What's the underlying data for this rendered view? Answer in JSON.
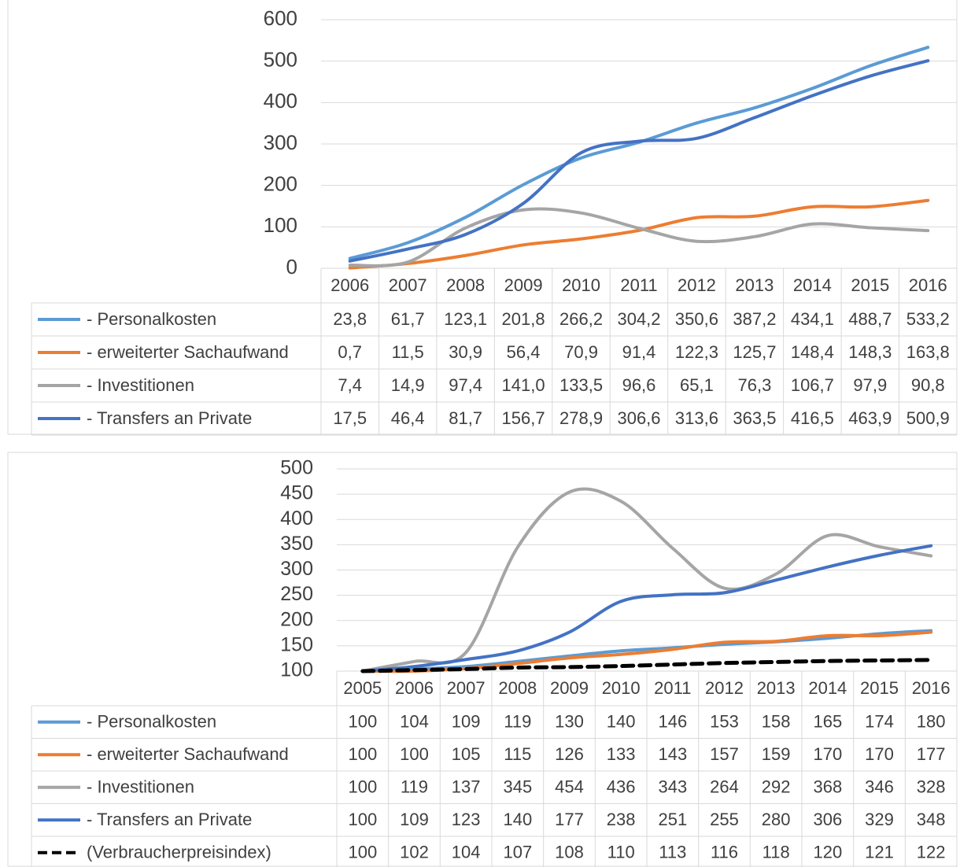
{
  "chart_data": [
    {
      "type": "line",
      "categories": [
        "2006",
        "2007",
        "2008",
        "2009",
        "2010",
        "2011",
        "2012",
        "2013",
        "2014",
        "2015",
        "2016"
      ],
      "ylim": [
        0,
        600
      ],
      "yticks": [
        0,
        100,
        200,
        300,
        400,
        500,
        600
      ],
      "grid": true,
      "legend": "table",
      "series": [
        {
          "name": "- Personalkosten",
          "color": "#5b9bd5",
          "values": [
            23.8,
            61.7,
            123.1,
            201.8,
            266.2,
            304.2,
            350.6,
            387.2,
            434.1,
            488.7,
            533.2
          ],
          "value_labels": [
            "23,8",
            "61,7",
            "123,1",
            "201,8",
            "266,2",
            "304,2",
            "350,6",
            "387,2",
            "434,1",
            "488,7",
            "533,2"
          ]
        },
        {
          "name": "- erweiterter Sachaufwand",
          "color": "#ed7d31",
          "values": [
            0.7,
            11.5,
            30.9,
            56.4,
            70.9,
            91.4,
            122.3,
            125.7,
            148.4,
            148.3,
            163.8
          ],
          "value_labels": [
            "0,7",
            "11,5",
            "30,9",
            "56,4",
            "70,9",
            "91,4",
            "122,3",
            "125,7",
            "148,4",
            "148,3",
            "163,8"
          ]
        },
        {
          "name": "- Investitionen",
          "color": "#a5a5a5",
          "values": [
            7.4,
            14.9,
            97.4,
            141.0,
            133.5,
            96.6,
            65.1,
            76.3,
            106.7,
            97.9,
            90.8
          ],
          "value_labels": [
            "7,4",
            "14,9",
            "97,4",
            "141,0",
            "133,5",
            "96,6",
            "65,1",
            "76,3",
            "106,7",
            "97,9",
            "90,8"
          ]
        },
        {
          "name": "- Transfers an Private",
          "color": "#4472c4",
          "values": [
            17.5,
            46.4,
            81.7,
            156.7,
            278.9,
            306.6,
            313.6,
            363.5,
            416.5,
            463.9,
            500.9
          ],
          "value_labels": [
            "17,5",
            "46,4",
            "81,7",
            "156,7",
            "278,9",
            "306,6",
            "313,6",
            "363,5",
            "416,5",
            "463,9",
            "500,9"
          ]
        }
      ]
    },
    {
      "type": "line",
      "categories": [
        "2005",
        "2006",
        "2007",
        "2008",
        "2009",
        "2010",
        "2011",
        "2012",
        "2013",
        "2014",
        "2015",
        "2016"
      ],
      "ylim": [
        100,
        500
      ],
      "yticks": [
        100,
        150,
        200,
        250,
        300,
        350,
        400,
        450,
        500
      ],
      "grid": true,
      "legend": "table",
      "series": [
        {
          "name": "- Personalkosten",
          "color": "#5b9bd5",
          "values": [
            100,
            104,
            109,
            119,
            130,
            140,
            146,
            153,
            158,
            165,
            174,
            180
          ]
        },
        {
          "name": "- erweiterter Sachaufwand",
          "color": "#ed7d31",
          "values": [
            100,
            100,
            105,
            115,
            126,
            133,
            143,
            157,
            159,
            170,
            170,
            177
          ]
        },
        {
          "name": "- Investitionen",
          "color": "#a5a5a5",
          "values": [
            100,
            119,
            137,
            345,
            454,
            436,
            343,
            264,
            292,
            368,
            346,
            328
          ]
        },
        {
          "name": "- Transfers an Private",
          "color": "#4472c4",
          "values": [
            100,
            109,
            123,
            140,
            177,
            238,
            251,
            255,
            280,
            306,
            329,
            348
          ]
        },
        {
          "name": "(Verbraucherpreisindex)",
          "color": "#000000",
          "dashed": true,
          "values": [
            100,
            102,
            104,
            107,
            108,
            110,
            113,
            116,
            118,
            120,
            121,
            122
          ]
        }
      ]
    }
  ]
}
